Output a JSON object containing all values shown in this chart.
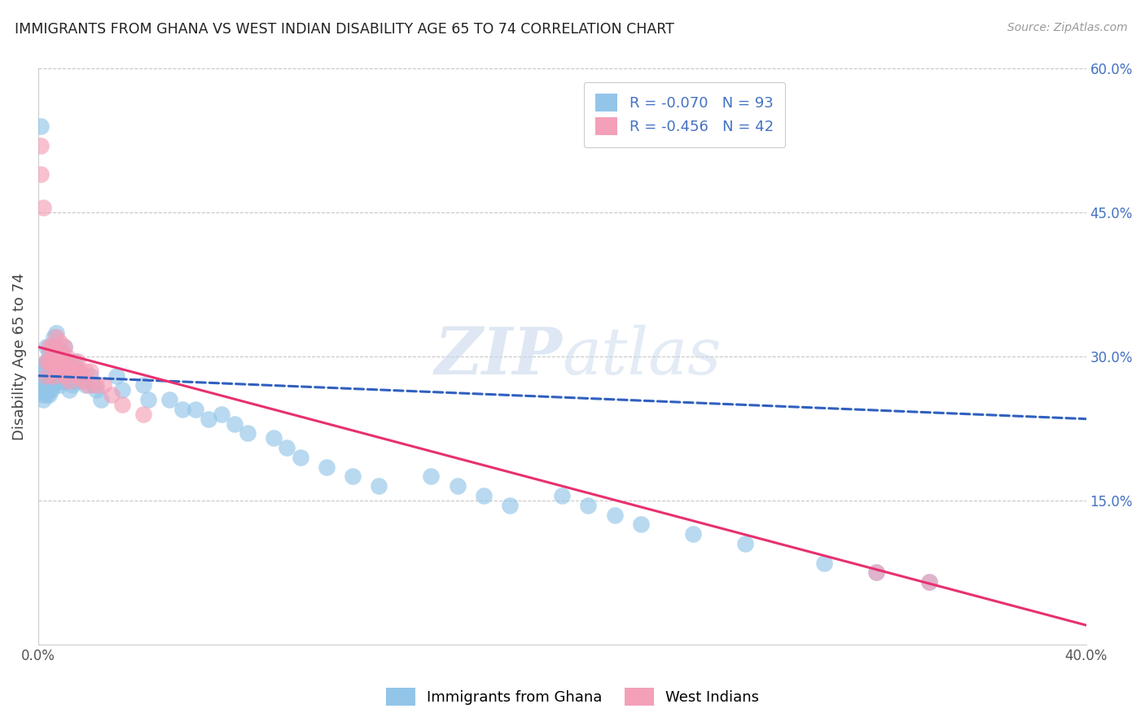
{
  "title": "IMMIGRANTS FROM GHANA VS WEST INDIAN DISABILITY AGE 65 TO 74 CORRELATION CHART",
  "source": "Source: ZipAtlas.com",
  "ylabel": "Disability Age 65 to 74",
  "x_min": 0.0,
  "x_max": 0.4,
  "y_min": 0.0,
  "y_max": 0.6,
  "x_tick_positions": [
    0.0,
    0.05,
    0.1,
    0.15,
    0.2,
    0.25,
    0.3,
    0.35,
    0.4
  ],
  "x_tick_labels": [
    "0.0%",
    "",
    "",
    "",
    "",
    "",
    "",
    "",
    "40.0%"
  ],
  "y_ticks_right": [
    0.15,
    0.3,
    0.45,
    0.6
  ],
  "y_tick_labels_right": [
    "15.0%",
    "30.0%",
    "45.0%",
    "60.0%"
  ],
  "ghana_color": "#92C5E8",
  "west_indian_color": "#F4A0B8",
  "ghana_trendline_color": "#3060C0",
  "west_indian_trendline_color": "#E83070",
  "watermark": "ZIPatlas",
  "legend_label1": "R = -0.070   N = 93",
  "legend_label2": "R = -0.456   N = 42",
  "bottom_label1": "Immigrants from Ghana",
  "bottom_label2": "West Indians",
  "ghana_x": [
    0.001,
    0.001,
    0.001,
    0.002,
    0.002,
    0.002,
    0.002,
    0.002,
    0.002,
    0.003,
    0.003,
    0.003,
    0.003,
    0.003,
    0.003,
    0.003,
    0.004,
    0.004,
    0.004,
    0.004,
    0.004,
    0.004,
    0.005,
    0.005,
    0.005,
    0.005,
    0.005,
    0.005,
    0.006,
    0.006,
    0.006,
    0.006,
    0.006,
    0.007,
    0.007,
    0.007,
    0.007,
    0.008,
    0.008,
    0.008,
    0.009,
    0.009,
    0.009,
    0.01,
    0.01,
    0.01,
    0.011,
    0.011,
    0.012,
    0.012,
    0.012,
    0.013,
    0.013,
    0.014,
    0.014,
    0.015,
    0.016,
    0.017,
    0.018,
    0.02,
    0.021,
    0.022,
    0.024,
    0.03,
    0.032,
    0.04,
    0.042,
    0.05,
    0.055,
    0.06,
    0.065,
    0.07,
    0.075,
    0.08,
    0.09,
    0.095,
    0.1,
    0.11,
    0.12,
    0.13,
    0.15,
    0.16,
    0.17,
    0.18,
    0.2,
    0.21,
    0.22,
    0.23,
    0.25,
    0.27,
    0.3,
    0.32,
    0.34
  ],
  "ghana_y": [
    0.29,
    0.54,
    0.27,
    0.29,
    0.275,
    0.27,
    0.265,
    0.26,
    0.255,
    0.31,
    0.295,
    0.285,
    0.275,
    0.27,
    0.265,
    0.26,
    0.305,
    0.295,
    0.28,
    0.275,
    0.265,
    0.26,
    0.31,
    0.295,
    0.285,
    0.28,
    0.27,
    0.265,
    0.32,
    0.305,
    0.29,
    0.28,
    0.27,
    0.325,
    0.31,
    0.295,
    0.28,
    0.3,
    0.285,
    0.27,
    0.305,
    0.29,
    0.275,
    0.31,
    0.29,
    0.275,
    0.295,
    0.28,
    0.295,
    0.28,
    0.265,
    0.285,
    0.27,
    0.295,
    0.275,
    0.285,
    0.28,
    0.275,
    0.27,
    0.28,
    0.27,
    0.265,
    0.255,
    0.28,
    0.265,
    0.27,
    0.255,
    0.255,
    0.245,
    0.245,
    0.235,
    0.24,
    0.23,
    0.22,
    0.215,
    0.205,
    0.195,
    0.185,
    0.175,
    0.165,
    0.175,
    0.165,
    0.155,
    0.145,
    0.155,
    0.145,
    0.135,
    0.125,
    0.115,
    0.105,
    0.085,
    0.075,
    0.065
  ],
  "west_x": [
    0.001,
    0.001,
    0.002,
    0.003,
    0.003,
    0.004,
    0.004,
    0.005,
    0.005,
    0.006,
    0.006,
    0.006,
    0.007,
    0.007,
    0.008,
    0.008,
    0.008,
    0.009,
    0.009,
    0.01,
    0.01,
    0.01,
    0.011,
    0.011,
    0.012,
    0.012,
    0.013,
    0.014,
    0.015,
    0.015,
    0.016,
    0.017,
    0.018,
    0.019,
    0.02,
    0.022,
    0.025,
    0.028,
    0.032,
    0.04,
    0.32,
    0.34
  ],
  "west_y": [
    0.52,
    0.49,
    0.455,
    0.295,
    0.28,
    0.31,
    0.295,
    0.31,
    0.295,
    0.305,
    0.295,
    0.28,
    0.32,
    0.295,
    0.315,
    0.295,
    0.285,
    0.305,
    0.285,
    0.31,
    0.295,
    0.28,
    0.3,
    0.285,
    0.29,
    0.275,
    0.285,
    0.29,
    0.295,
    0.28,
    0.285,
    0.275,
    0.285,
    0.27,
    0.285,
    0.27,
    0.27,
    0.26,
    0.25,
    0.24,
    0.075,
    0.065
  ],
  "ghana_trend_x": [
    0.0,
    0.4
  ],
  "ghana_trend_y": [
    0.28,
    0.235
  ],
  "west_trend_x": [
    0.0,
    0.4
  ],
  "west_trend_y": [
    0.31,
    0.02
  ]
}
